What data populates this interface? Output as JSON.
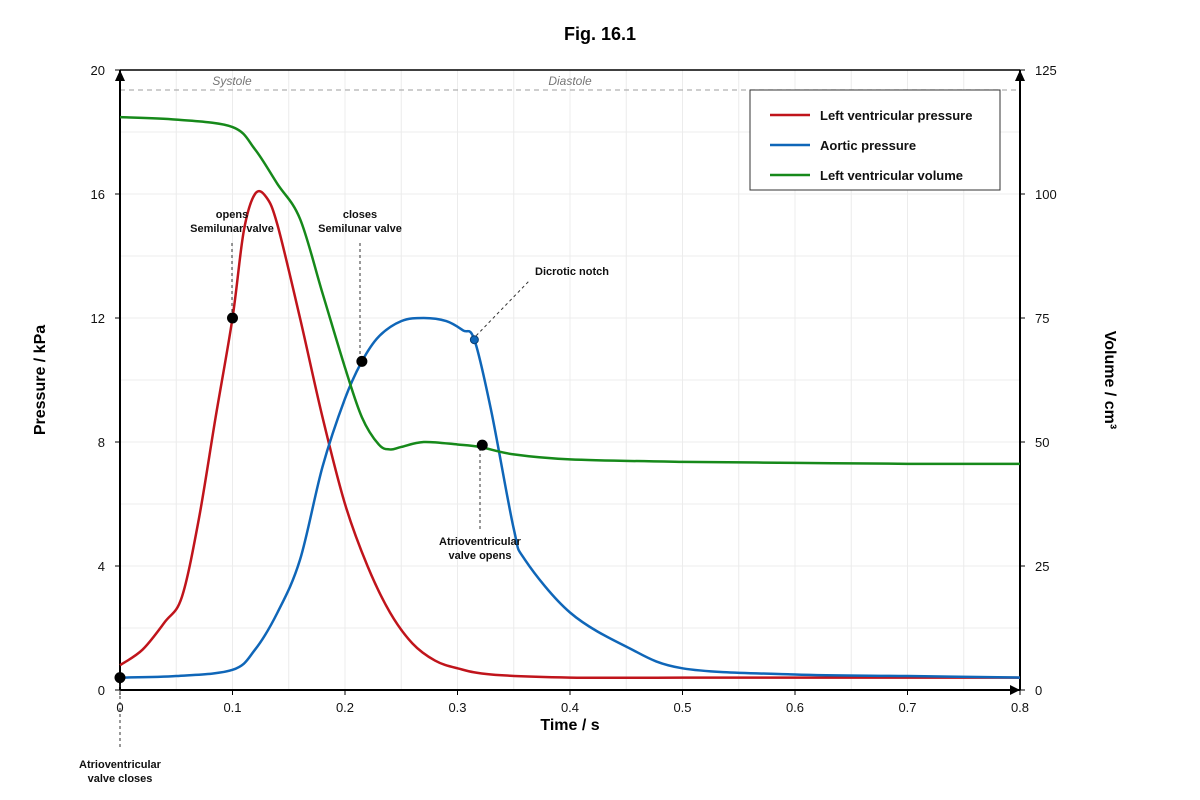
{
  "chart_data": {
    "type": "line",
    "title": "Fig. 16.1",
    "xlabel": "Time / s",
    "ylabel": "Pressure / kPa",
    "y2label": "Volume / cm³",
    "xlim": [
      0,
      0.8
    ],
    "ylim": [
      0,
      20
    ],
    "y2lim": [
      0,
      125
    ],
    "x_ticks": [
      "0",
      "0.1",
      "0.2",
      "0.3",
      "0.4",
      "0.5",
      "0.6",
      "0.7",
      "0.8"
    ],
    "y_ticks": [
      "0",
      "4",
      "8",
      "12",
      "16",
      "20"
    ],
    "y2_ticks": [
      "0",
      "25",
      "50",
      "75",
      "100",
      "125"
    ],
    "grid": true,
    "legend_position": "top-right",
    "phases": [
      "Systole",
      "Diastole"
    ],
    "series": [
      {
        "name": "Left ventricular pressure",
        "color": "#c0141b",
        "axis": "left",
        "x": [
          0,
          0.02,
          0.04,
          0.055,
          0.07,
          0.085,
          0.1,
          0.11,
          0.12,
          0.13,
          0.14,
          0.16,
          0.18,
          0.2,
          0.22,
          0.24,
          0.26,
          0.28,
          0.3,
          0.33,
          0.4,
          0.5,
          0.6,
          0.7,
          0.8
        ],
        "y": [
          0.8,
          1.3,
          2.2,
          3.0,
          5.5,
          8.8,
          12.0,
          14.8,
          16.0,
          15.9,
          15.0,
          12.0,
          8.8,
          6.0,
          4.0,
          2.5,
          1.5,
          0.95,
          0.7,
          0.5,
          0.4,
          0.4,
          0.4,
          0.4,
          0.4
        ]
      },
      {
        "name": "Aortic pressure",
        "color": "#0f66b8",
        "axis": "left",
        "x": [
          0,
          0.05,
          0.1,
          0.12,
          0.14,
          0.16,
          0.18,
          0.2,
          0.215,
          0.23,
          0.25,
          0.27,
          0.29,
          0.305,
          0.315,
          0.33,
          0.35,
          0.36,
          0.4,
          0.45,
          0.5,
          0.6,
          0.7,
          0.8
        ],
        "y": [
          0.4,
          0.45,
          0.65,
          1.3,
          2.5,
          4.2,
          7.2,
          9.4,
          10.6,
          11.4,
          11.9,
          12.0,
          11.9,
          11.6,
          11.3,
          9.0,
          5.2,
          4.2,
          2.5,
          1.4,
          0.7,
          0.5,
          0.45,
          0.4
        ]
      },
      {
        "name": "Left ventricular volume",
        "color": "#16891a",
        "axis": "right",
        "x": [
          0,
          0.05,
          0.1,
          0.12,
          0.14,
          0.16,
          0.18,
          0.2,
          0.215,
          0.23,
          0.24,
          0.25,
          0.27,
          0.3,
          0.32,
          0.35,
          0.4,
          0.5,
          0.6,
          0.7,
          0.8
        ],
        "y": [
          115.5,
          115.0,
          113.5,
          109.0,
          102.0,
          95.0,
          80.0,
          65.0,
          55.0,
          49.5,
          48.5,
          49.0,
          50.0,
          49.5,
          49.0,
          47.5,
          46.5,
          46.0,
          45.8,
          45.6,
          45.6
        ]
      }
    ],
    "annotations": [
      {
        "text_lines": [
          "opens",
          "Semilunar valve"
        ],
        "x": 0.1,
        "y": 12.0
      },
      {
        "text_lines": [
          "closes",
          "Semilunar valve"
        ],
        "x": 0.215,
        "y": 10.6
      },
      {
        "text_lines": [
          "Dicrotic notch"
        ],
        "x": 0.315,
        "y": 11.3
      },
      {
        "text_lines": [
          "Atrioventricular",
          "valve opens"
        ],
        "x": 0.322,
        "y": 7.9
      },
      {
        "text_lines": [
          "Atrioventricular",
          "valve closes"
        ],
        "x": 0,
        "y": 0.4
      }
    ]
  }
}
